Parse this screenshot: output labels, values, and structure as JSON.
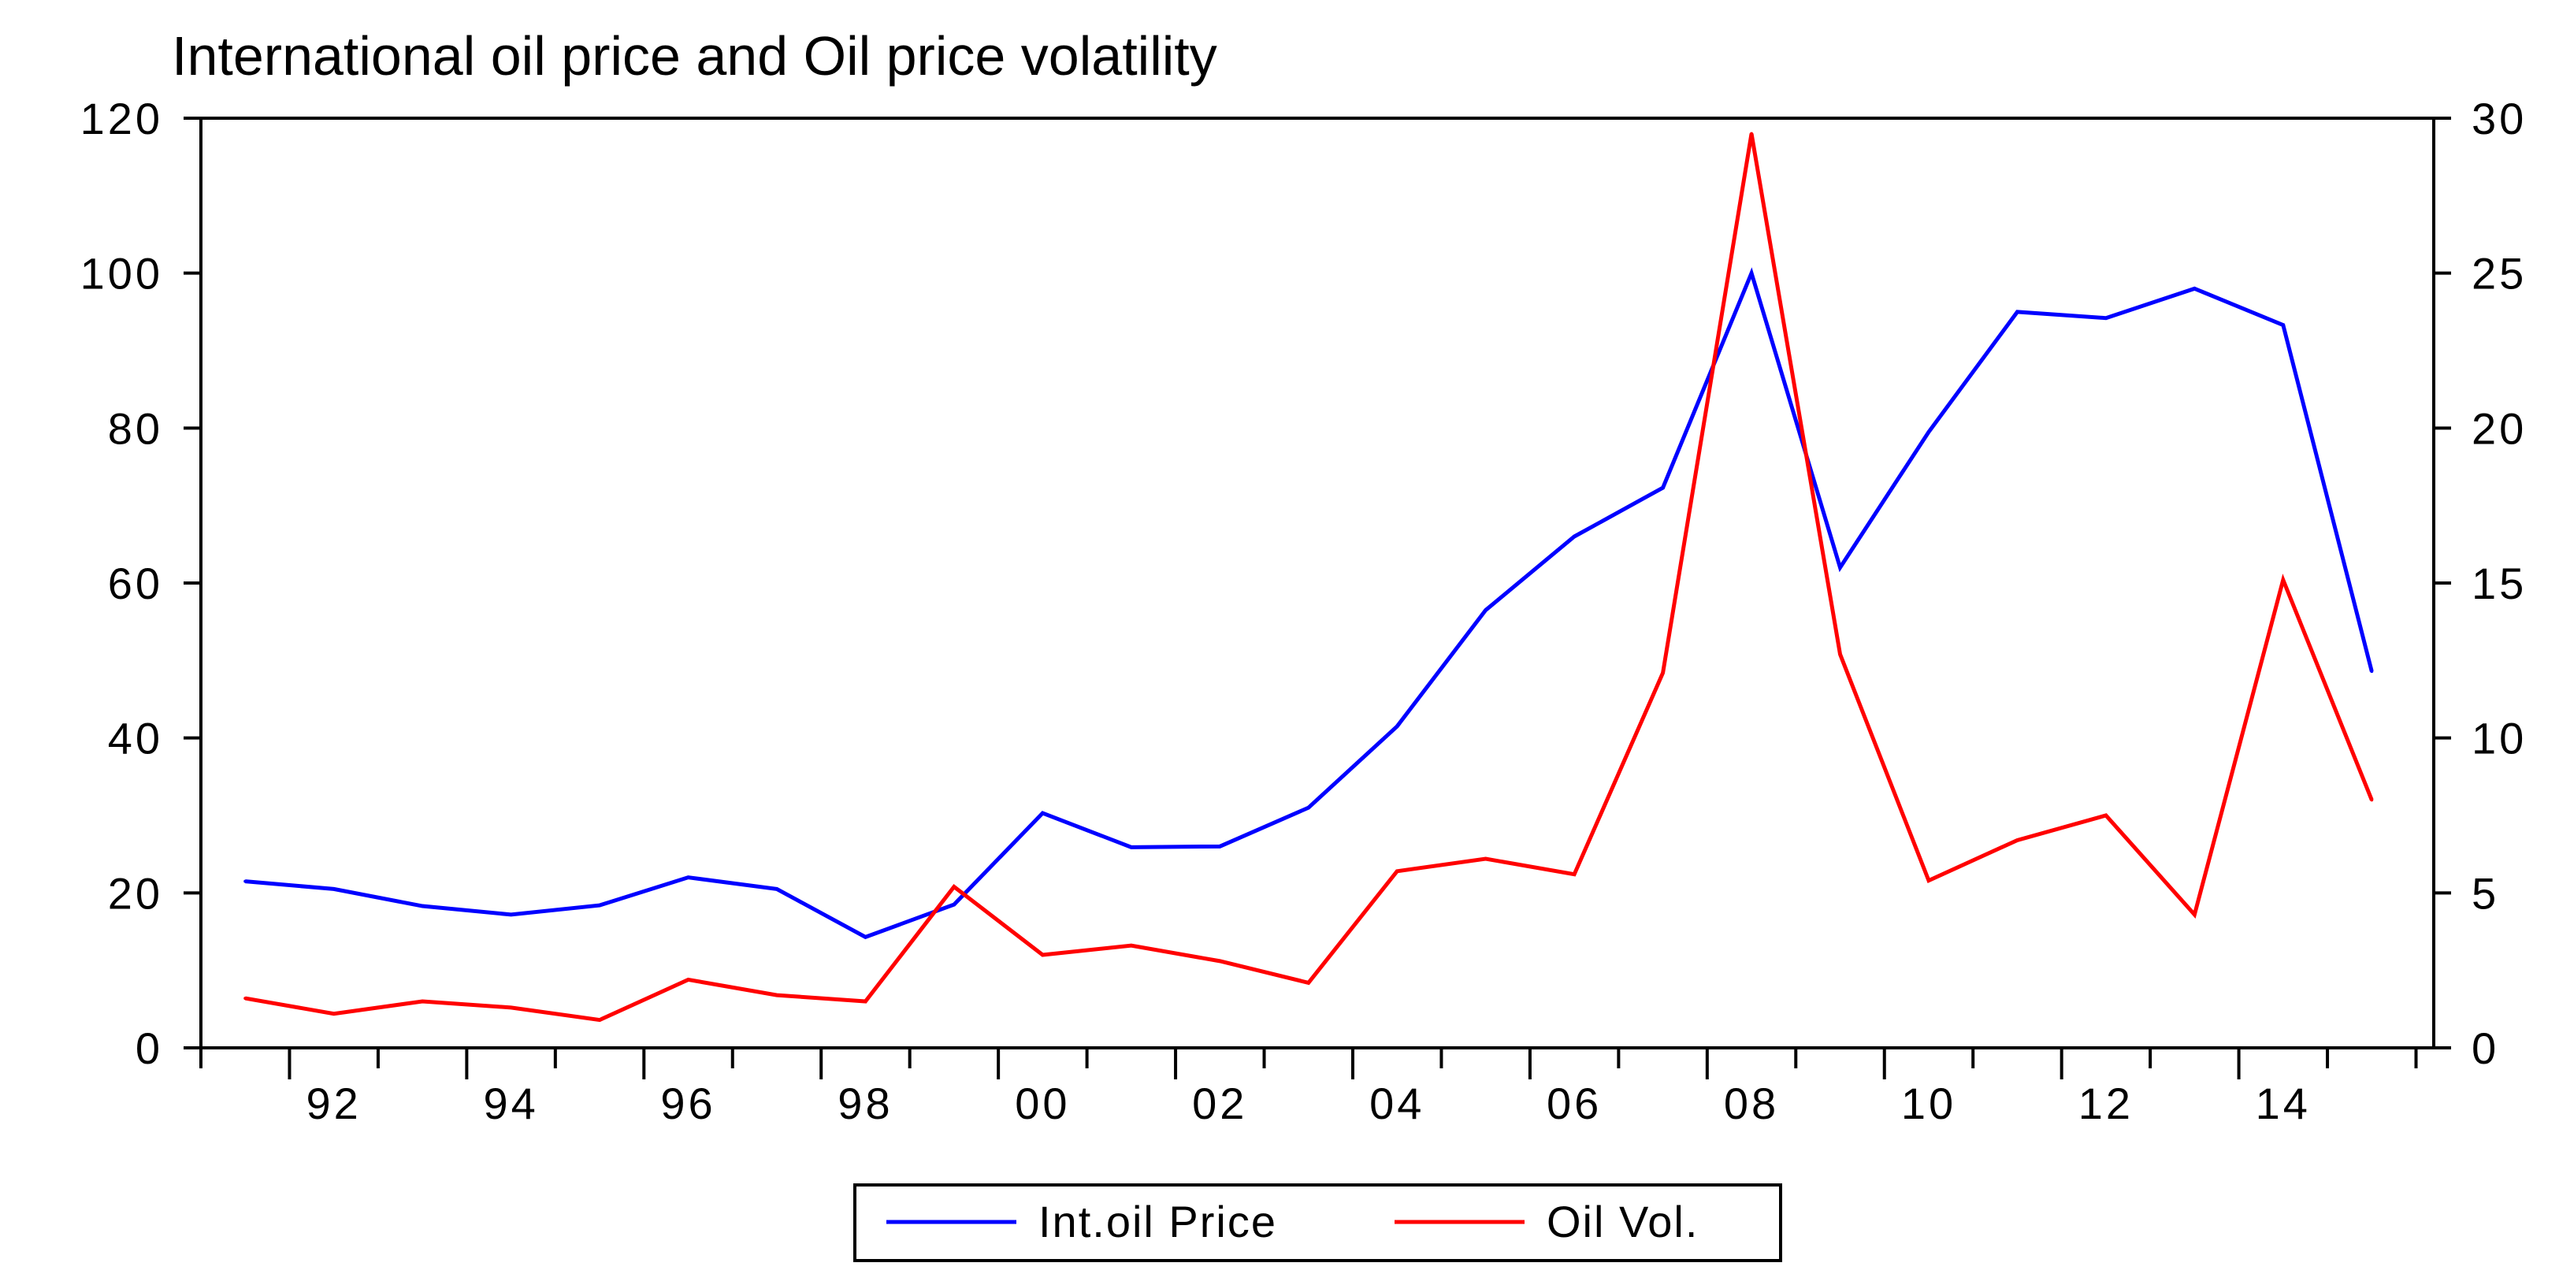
{
  "chart_data": {
    "type": "line",
    "title": "International oil price and Oil price volatility",
    "x": [
      1991,
      1992,
      1993,
      1994,
      1995,
      1996,
      1997,
      1998,
      1999,
      2000,
      2001,
      2002,
      2003,
      2004,
      2005,
      2006,
      2007,
      2008,
      2009,
      2010,
      2011,
      2012,
      2013,
      2014,
      2015
    ],
    "x_tick_labels": [
      "92",
      "94",
      "96",
      "98",
      "00",
      "02",
      "04",
      "06",
      "08",
      "10",
      "12",
      "14"
    ],
    "x_tick_years": [
      1992,
      1994,
      1996,
      1998,
      2000,
      2002,
      2004,
      2006,
      2008,
      2010,
      2012,
      2014
    ],
    "y_left": {
      "min": 0,
      "max": 120,
      "ticks": [
        "0",
        "20",
        "40",
        "60",
        "80",
        "100",
        "120"
      ]
    },
    "y_right": {
      "min": 0,
      "max": 30,
      "ticks": [
        "0",
        "5",
        "10",
        "15",
        "20",
        "25",
        "30"
      ]
    },
    "series": [
      {
        "name": "Int.oil Price",
        "axis": "left",
        "color": "#0000ff",
        "values": [
          21.5,
          20.5,
          18.3,
          17.2,
          18.4,
          22.0,
          20.5,
          14.3,
          18.5,
          30.3,
          25.9,
          26.0,
          31.0,
          41.5,
          56.5,
          66.0,
          72.3,
          100.0,
          62.0,
          79.5,
          95.0,
          94.2,
          98.0,
          93.3,
          48.6
        ]
      },
      {
        "name": "Oil Vol.",
        "axis": "right",
        "color": "#ff0000",
        "values": [
          1.6,
          1.1,
          1.5,
          1.3,
          0.9,
          2.2,
          1.7,
          1.5,
          5.2,
          3.0,
          3.3,
          2.8,
          2.1,
          5.7,
          6.1,
          5.6,
          12.1,
          29.5,
          12.7,
          5.4,
          6.7,
          7.5,
          4.3,
          15.1,
          8.0
        ]
      }
    ],
    "legend": [
      "Int.oil Price",
      "Oil Vol."
    ]
  }
}
